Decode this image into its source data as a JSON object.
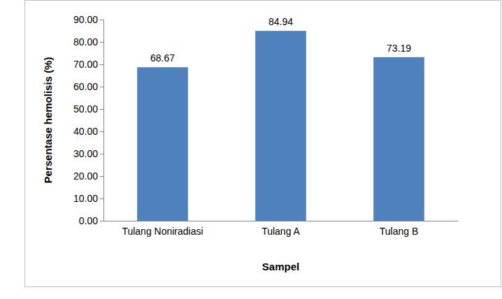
{
  "chart_data": {
    "type": "bar",
    "x_label": "Sampel",
    "y_label": "Persentase hemolisis (%)",
    "categories": [
      "Tulang Noniradiasi",
      "Tulang A",
      "Tulang B"
    ],
    "values": [
      68.67,
      84.94,
      73.19
    ],
    "color": "#4f81bd",
    "data_labels": true,
    "grid": false,
    "ylim": [
      0,
      90
    ],
    "yticks": [
      {
        "value": 0,
        "label": "0.00"
      },
      {
        "value": 10,
        "label": "10.00"
      },
      {
        "value": 20,
        "label": "20.00"
      },
      {
        "value": 30,
        "label": "30.00"
      },
      {
        "value": 40,
        "label": "40.00"
      },
      {
        "value": 50,
        "label": "50.00"
      },
      {
        "value": 60,
        "label": "60.00"
      },
      {
        "value": 70,
        "label": "70.00"
      },
      {
        "value": 80,
        "label": "80.00"
      },
      {
        "value": 90,
        "label": "90.00"
      }
    ]
  }
}
